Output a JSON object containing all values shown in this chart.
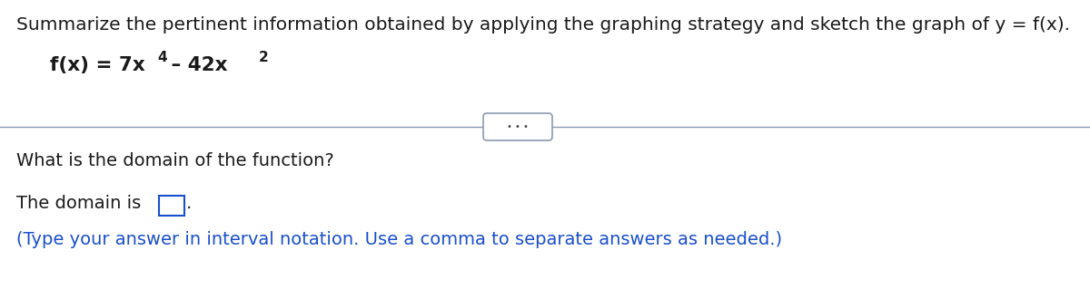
{
  "title_text": "Summarize the pertinent information obtained by applying the graphing strategy and sketch the graph of y = f(x).",
  "dots_text": "• • •",
  "question_text": "What is the domain of the function?",
  "domain_label": "The domain is",
  "hint_text": "(Type your answer in interval notation. Use a comma to separate answers as needed.)",
  "title_color": "#1a1a1a",
  "function_color": "#1a1a1a",
  "question_color": "#1a1a1a",
  "domain_label_color": "#1a1a1a",
  "hint_color": "#1a4fcc",
  "box_border_color": "#1a4fcc",
  "divider_color": "#8a9bb0",
  "background_color": "#ffffff",
  "title_fontsize": 14.5,
  "function_fontsize": 15.5,
  "sup_fontsize": 11,
  "question_fontsize": 14,
  "domain_fontsize": 14,
  "hint_fontsize": 14
}
